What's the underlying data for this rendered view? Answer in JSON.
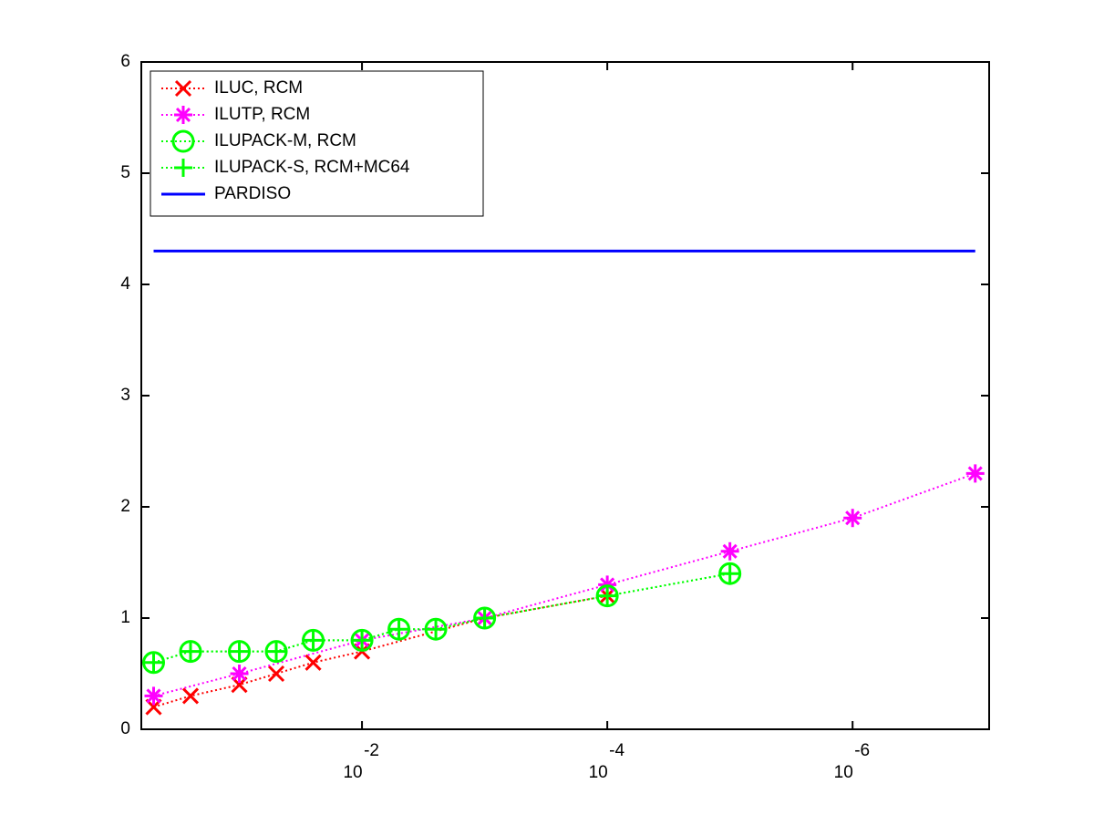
{
  "chart_data": {
    "type": "line",
    "xscale": "log",
    "x_reversed": true,
    "xlim": [
      0.63,
      7.7e-08
    ],
    "ylim": [
      0,
      6
    ],
    "xticks": [
      {
        "value": 0.01,
        "label": "10",
        "exponent": "-2"
      },
      {
        "value": 0.0001,
        "label": "10",
        "exponent": "-4"
      },
      {
        "value": 1e-06,
        "label": "10",
        "exponent": "-6"
      }
    ],
    "yticks": [
      0,
      1,
      2,
      3,
      4,
      5,
      6
    ],
    "legend": "upper-left",
    "series": [
      {
        "name": "ILUC, RCM",
        "color": "#ff0000",
        "marker": "x",
        "linestyle": "dotted",
        "x": [
          0.5,
          0.25,
          0.1,
          0.05,
          0.025,
          0.01,
          0.001,
          0.0001
        ],
        "values": [
          0.2,
          0.3,
          0.4,
          0.5,
          0.6,
          0.7,
          1.0,
          1.2
        ]
      },
      {
        "name": "ILUTP, RCM",
        "color": "#ff00ff",
        "marker": "asterisk",
        "linestyle": "dotted",
        "x": [
          0.5,
          0.1,
          0.01,
          0.001,
          0.0001,
          1e-05,
          1e-06,
          1e-07
        ],
        "values": [
          0.3,
          0.5,
          0.8,
          1.0,
          1.3,
          1.6,
          1.9,
          2.3
        ]
      },
      {
        "name": "ILUPACK-M, RCM",
        "color": "#00ff00",
        "marker": "circle",
        "linestyle": "dotted",
        "x": [
          0.5,
          0.25,
          0.1,
          0.05,
          0.025,
          0.01,
          0.005,
          0.0025,
          0.001,
          0.0001,
          1e-05
        ],
        "values": [
          0.6,
          0.7,
          0.7,
          0.7,
          0.8,
          0.8,
          0.9,
          0.9,
          1.0,
          1.2,
          1.4
        ]
      },
      {
        "name": "ILUPACK-S, RCM+MC64",
        "color": "#00ff00",
        "marker": "plus",
        "linestyle": "dotted",
        "x": [
          0.5,
          0.25,
          0.1,
          0.05,
          0.025,
          0.01,
          0.005,
          0.0025,
          0.001,
          0.0001,
          1e-05
        ],
        "values": [
          0.6,
          0.7,
          0.7,
          0.7,
          0.8,
          0.8,
          0.9,
          0.9,
          1.0,
          1.2,
          1.4
        ]
      },
      {
        "name": "PARDISO",
        "color": "#0000ff",
        "marker": "none",
        "linestyle": "solid",
        "x": [
          0.5,
          1e-07
        ],
        "values": [
          4.3,
          4.3
        ]
      }
    ]
  }
}
